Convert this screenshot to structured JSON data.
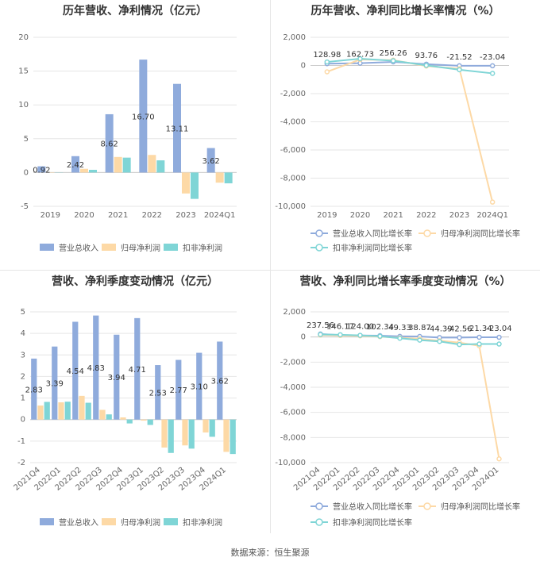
{
  "footer": "数据来源：恒生聚源",
  "colors": {
    "revenue": "#8fabdc",
    "net_profit": "#fdd9a6",
    "deducted_profit": "#7fd5d6"
  },
  "chart_data": [
    {
      "type": "bar",
      "title": "历年营收、净利情况（亿元）",
      "categories": [
        "2019",
        "2020",
        "2021",
        "2022",
        "2023",
        "2024Q1"
      ],
      "ylim": [
        -5,
        20
      ],
      "yticks": [
        -5,
        0,
        5,
        10,
        15,
        20
      ],
      "legend_position": "bottom",
      "grid": true,
      "series": [
        {
          "name": "营业总收入",
          "values": [
            0.92,
            2.42,
            8.62,
            16.7,
            13.11,
            3.62
          ],
          "labels": [
            "0.92",
            "2.42",
            "8.62",
            "16.70",
            "13.11",
            "3.62"
          ]
        },
        {
          "name": "归母净利润",
          "values": [
            0.05,
            0.55,
            2.3,
            2.6,
            -3.1,
            -1.5
          ]
        },
        {
          "name": "扣非净利润",
          "values": [
            0.03,
            0.4,
            2.2,
            1.8,
            -3.9,
            -1.6
          ]
        }
      ]
    },
    {
      "type": "line",
      "title": "历年营收、净利同比增长率情况（%）",
      "categories": [
        "2019",
        "2020",
        "2021",
        "2022",
        "2023",
        "2024Q1"
      ],
      "ylim": [
        -10000,
        2000
      ],
      "yticks": [
        -10000,
        -8000,
        -6000,
        -4000,
        -2000,
        0,
        2000
      ],
      "ytick_labels": [
        "-10,000",
        "-8,000",
        "-6,000",
        "-4,000",
        "-2,000",
        "0",
        "2,000"
      ],
      "legend_position": "bottom",
      "grid": true,
      "series": [
        {
          "name": "营业总收入同比增长率",
          "values": [
            128.98,
            162.73,
            256.26,
            93.76,
            -21.52,
            -23.04
          ],
          "labels": [
            "128.98",
            "162.73",
            "256.26",
            "93.76",
            "-21.52",
            "-23.04"
          ]
        },
        {
          "name": "归母净利润同比增长率",
          "values": [
            -450,
            420,
            380,
            -40,
            -230,
            -9700
          ]
        },
        {
          "name": "扣非净利润同比增长率",
          "values": [
            250,
            480,
            340,
            10,
            -300,
            -560
          ]
        }
      ]
    },
    {
      "type": "bar",
      "title": "营收、净利季度变动情况（亿元）",
      "categories": [
        "2021Q4",
        "2022Q1",
        "2022Q2",
        "2022Q3",
        "2022Q4",
        "2023Q1",
        "2023Q2",
        "2023Q3",
        "2023Q4",
        "2024Q1"
      ],
      "ylim": [
        -2,
        5
      ],
      "yticks": [
        -2,
        -1,
        0,
        1,
        2,
        3,
        4,
        5
      ],
      "legend_position": "bottom",
      "grid": true,
      "series": [
        {
          "name": "营业总收入",
          "values": [
            2.83,
            3.39,
            4.54,
            4.83,
            3.94,
            4.71,
            2.53,
            2.77,
            3.1,
            3.62
          ],
          "labels": [
            "2.83",
            "3.39",
            "4.54",
            "4.83",
            "3.94",
            "4.71",
            "2.53",
            "2.77",
            "3.10",
            "3.62"
          ]
        },
        {
          "name": "归母净利润",
          "values": [
            0.65,
            0.8,
            1.1,
            0.45,
            0.1,
            -0.05,
            -1.3,
            -1.2,
            -0.6,
            -1.5
          ]
        },
        {
          "name": "扣非净利润",
          "values": [
            0.82,
            0.83,
            0.78,
            0.24,
            -0.18,
            -0.25,
            -1.55,
            -1.35,
            -0.8,
            -1.6
          ]
        }
      ]
    },
    {
      "type": "line",
      "title": "营收、净利同比增长率季度变动情况（%）",
      "categories": [
        "2021Q4",
        "2022Q1",
        "2022Q2",
        "2022Q3",
        "2022Q4",
        "2023Q1",
        "2023Q2",
        "2023Q3",
        "2023Q4",
        "2024Q1"
      ],
      "ylim": [
        -10000,
        2000
      ],
      "yticks": [
        -10000,
        -8000,
        -6000,
        -4000,
        -2000,
        0,
        2000
      ],
      "ytick_labels": [
        "-10,000",
        "-8,000",
        "-6,000",
        "-4,000",
        "-2,000",
        "0",
        "2,000"
      ],
      "legend_position": "bottom",
      "grid": true,
      "series": [
        {
          "name": "营业总收入同比增长率",
          "values": [
            237.56,
            146.17,
            124.0,
            102.34,
            49.33,
            38.87,
            -44.39,
            -42.56,
            -21.34,
            -23.04
          ],
          "labels": [
            "237.56",
            "146.17",
            "124.00",
            "102.34",
            "49.33",
            "38.87",
            "-44.39",
            "-42.56",
            "-21.34",
            "-23.04"
          ]
        },
        {
          "name": "归母净利润同比增长率",
          "values": [
            150,
            120,
            90,
            30,
            -60,
            -150,
            -300,
            -450,
            -700,
            -9700
          ]
        },
        {
          "name": "扣非净利润同比增长率",
          "values": [
            200,
            180,
            130,
            60,
            -100,
            -250,
            -350,
            -600,
            -560,
            -560
          ]
        }
      ]
    }
  ]
}
